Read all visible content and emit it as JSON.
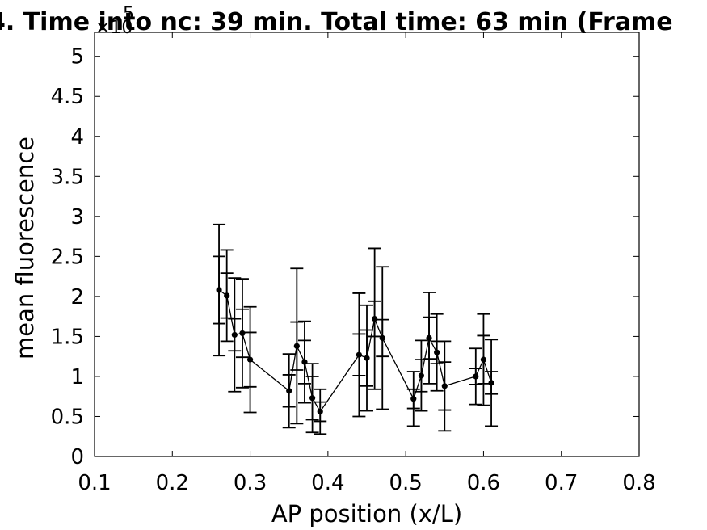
{
  "chart_data": {
    "type": "line",
    "title": "4. Time into nc: 39 min. Total time: 63 min (Frame",
    "xlabel": "AP position (x/L)",
    "ylabel": "mean fluorescence",
    "y_exponent_label": "×10",
    "y_exponent_power": "5",
    "xlim": [
      0.1,
      0.8
    ],
    "ylim": [
      0,
      5.3
    ],
    "xticks": [
      "0.1",
      "0.2",
      "0.3",
      "0.4",
      "0.5",
      "0.6",
      "0.7",
      "0.8"
    ],
    "yticks": [
      "0",
      "0.5",
      "1",
      "1.5",
      "2",
      "2.5",
      "3",
      "3.5",
      "4",
      "4.5",
      "5"
    ],
    "grid": false,
    "line_color": "#000000",
    "series": [
      {
        "x": [
          0.26,
          0.27,
          0.28,
          0.29,
          0.3,
          0.35,
          0.36,
          0.37,
          0.38,
          0.39,
          0.44,
          0.45,
          0.46,
          0.47,
          0.51,
          0.52,
          0.53,
          0.54,
          0.55,
          0.59,
          0.6,
          0.61
        ],
        "y": [
          2.08,
          2.01,
          1.52,
          1.54,
          1.21,
          0.82,
          1.38,
          1.18,
          0.73,
          0.56,
          1.27,
          1.23,
          1.72,
          1.48,
          0.72,
          1.01,
          1.48,
          1.3,
          0.88,
          1.0,
          1.21,
          0.92
        ],
        "err_inner": [
          0.42,
          0.28,
          0.2,
          0.3,
          0.34,
          0.2,
          0.3,
          0.27,
          0.27,
          0.12,
          0.26,
          0.35,
          0.22,
          0.23,
          0.12,
          0.2,
          0.26,
          0.14,
          0.3,
          0.1,
          0.3,
          0.14
        ],
        "err_outer": [
          0.82,
          0.57,
          0.71,
          0.68,
          0.66,
          0.46,
          0.97,
          0.51,
          0.43,
          0.28,
          0.77,
          0.66,
          0.88,
          0.89,
          0.34,
          0.44,
          0.57,
          0.48,
          0.56,
          0.35,
          0.57,
          0.54
        ]
      }
    ]
  }
}
